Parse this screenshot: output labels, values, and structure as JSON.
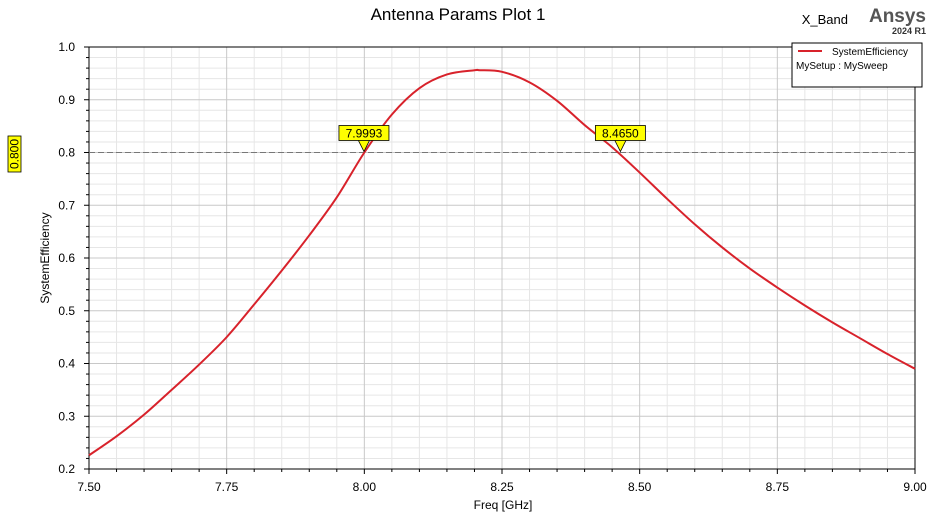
{
  "header": {
    "title": "Antenna Params Plot 1",
    "project": "X_Band",
    "brand": "Ansys",
    "version": "2024 R1"
  },
  "legend": {
    "series_label": "SystemEfficiency",
    "setup_label": "MySetup : MySweep"
  },
  "markers": {
    "left_label": "7.9993",
    "right_label": "8.4650",
    "y_ref_label": "0.800"
  },
  "colors": {
    "series": "#d8222b",
    "marker_fill": "#ffff00",
    "grid": "#c8c8c8"
  },
  "chart_data": {
    "type": "line",
    "title": "Antenna Params Plot 1",
    "xlabel": "Freq [GHz]",
    "ylabel": "SystemEfficiency",
    "xlim": [
      7.5,
      9.0
    ],
    "ylim": [
      0.2,
      1.0
    ],
    "x_ticks": [
      "7.50",
      "7.75",
      "8.00",
      "8.25",
      "8.50",
      "8.75",
      "9.00"
    ],
    "y_ticks": [
      "0.2",
      "0.3",
      "0.4",
      "0.5",
      "0.6",
      "0.7",
      "0.8",
      "0.9",
      "1.0"
    ],
    "grid": true,
    "legend_position": "top-right",
    "series": [
      {
        "name": "SystemEfficiency",
        "x": [
          7.5,
          7.55,
          7.6,
          7.65,
          7.7,
          7.75,
          7.8,
          7.85,
          7.9,
          7.95,
          8.0,
          8.05,
          8.1,
          8.15,
          8.2,
          8.21,
          8.25,
          8.3,
          8.35,
          8.4,
          8.45,
          8.5,
          8.55,
          8.6,
          8.65,
          8.7,
          8.75,
          8.8,
          8.85,
          8.9,
          8.95,
          9.0
        ],
        "y": [
          0.226,
          0.262,
          0.303,
          0.35,
          0.398,
          0.45,
          0.512,
          0.576,
          0.643,
          0.715,
          0.8,
          0.872,
          0.922,
          0.948,
          0.956,
          0.956,
          0.953,
          0.933,
          0.898,
          0.852,
          0.81,
          0.762,
          0.712,
          0.664,
          0.62,
          0.58,
          0.544,
          0.51,
          0.478,
          0.448,
          0.418,
          0.39
        ]
      }
    ],
    "markers": [
      {
        "x": 7.9993,
        "y": 0.8,
        "label": "7.9993"
      },
      {
        "x": 8.465,
        "y": 0.8,
        "label": "8.4650"
      }
    ],
    "reference_line": {
      "y": 0.8,
      "label": "0.800"
    }
  }
}
